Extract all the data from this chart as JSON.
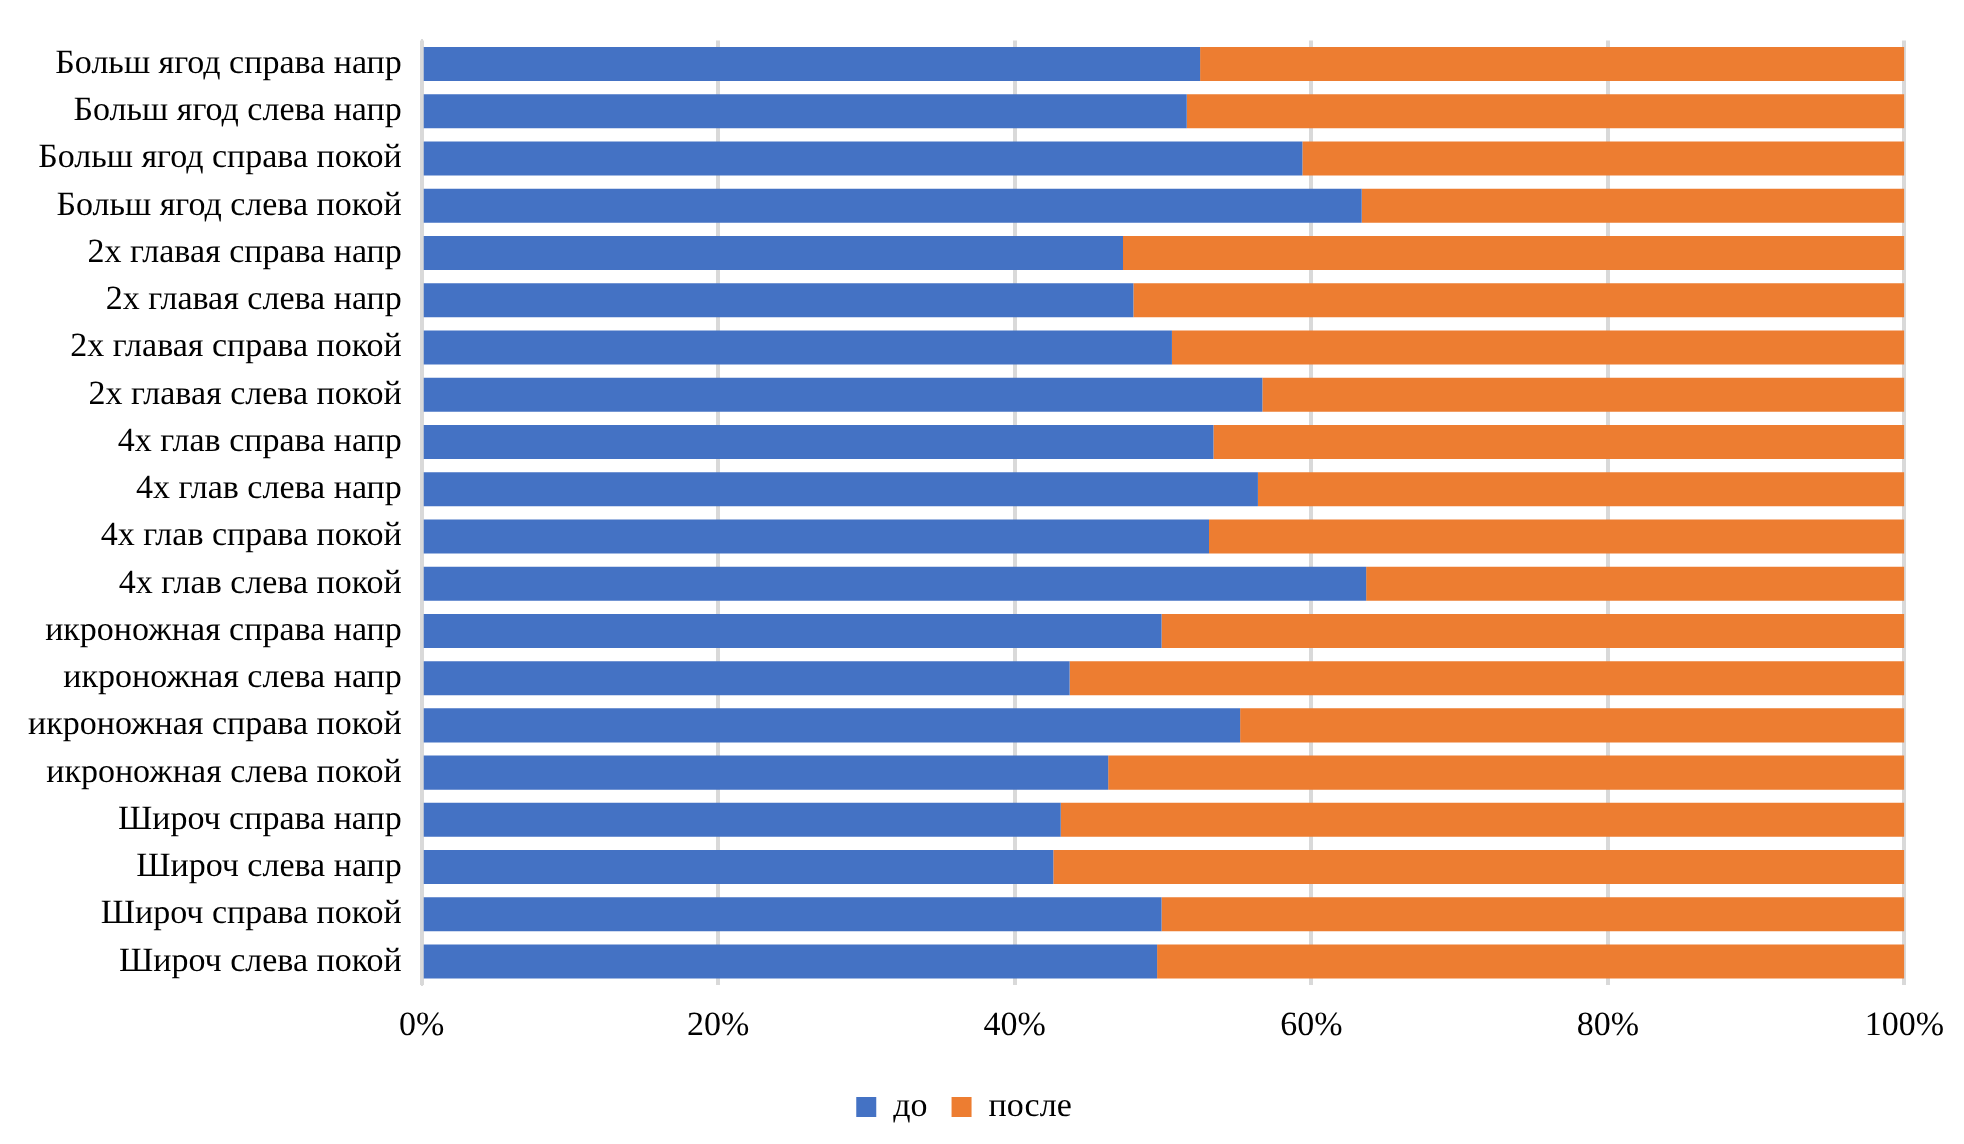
{
  "chart_data": {
    "type": "bar",
    "orientation": "horizontal",
    "stacked": true,
    "categories": [
      "Больш ягод справа напр",
      "Больш ягод слева напр",
      "Больш ягод справа покой",
      "Больш ягод слева покой",
      "2х главая справа напр",
      "2х главая слева напр",
      "2х главая справа покой",
      "2х главая слева покой",
      "4х глав справа напр",
      "4х глав слева напр",
      "4х глав справа покой",
      "4х глав слева покой",
      "икроножная справа напр",
      "икроножная слева напр",
      "икроножная справа покой",
      "икроножная слева покой",
      "Широч справа напр",
      "Широч слева напр",
      "Широч справа покой",
      "Широч слева покой"
    ],
    "series": [
      {
        "name": "до",
        "color": "#4472c4",
        "values": [
          52.5,
          51.6,
          59.4,
          63.4,
          47.3,
          48.0,
          50.6,
          56.7,
          53.4,
          56.4,
          53.1,
          63.7,
          49.9,
          43.7,
          55.2,
          46.3,
          43.1,
          42.6,
          49.9,
          49.6
        ]
      },
      {
        "name": "после",
        "color": "#ed7d31",
        "values": [
          47.5,
          48.4,
          40.6,
          36.6,
          52.7,
          52.0,
          49.4,
          43.3,
          46.6,
          43.6,
          46.9,
          36.3,
          50.1,
          56.3,
          44.8,
          53.7,
          56.9,
          57.4,
          50.1,
          50.4
        ]
      }
    ],
    "xlim": [
      0,
      100
    ],
    "xticks": [
      {
        "value": 0,
        "label": "0%"
      },
      {
        "value": 20,
        "label": "20%"
      },
      {
        "value": 40,
        "label": "40%"
      },
      {
        "value": 60,
        "label": "60%"
      },
      {
        "value": 80,
        "label": "80%"
      },
      {
        "value": 100,
        "label": "100%"
      }
    ],
    "grid": "x",
    "legend": "bottom"
  }
}
